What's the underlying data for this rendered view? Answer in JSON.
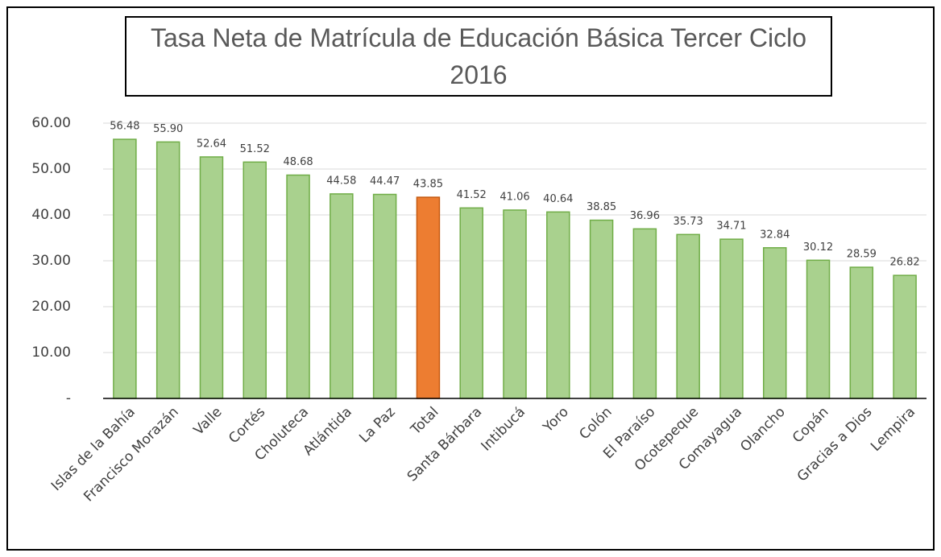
{
  "chart_data": {
    "type": "bar",
    "title": "Tasa Neta de Matrícula de Educación Básica Tercer Ciclo 2016",
    "categories": [
      "Islas de la Bahía",
      "Francisco Morazán",
      "Valle",
      "Cortés",
      "Choluteca",
      "Atlántida",
      "La Paz",
      "Total",
      "Santa Bárbara",
      "Intibucá",
      "Yoro",
      "Colón",
      "El Paraíso",
      "Ocotepeque",
      "Comayagua",
      "Olancho",
      "Copán",
      "Gracias a Dios",
      "Lempira"
    ],
    "values": [
      56.48,
      55.9,
      52.64,
      51.52,
      48.68,
      44.58,
      44.47,
      43.85,
      41.52,
      41.06,
      40.64,
      38.85,
      36.96,
      35.73,
      34.71,
      32.84,
      30.12,
      28.59,
      26.82
    ],
    "value_labels": [
      "56.48",
      "55.90",
      "52.64",
      "51.52",
      "48.68",
      "44.58",
      "44.47",
      "43.85",
      "41.52",
      "41.06",
      "40.64",
      "38.85",
      "36.96",
      "35.73",
      "34.71",
      "32.84",
      "30.12",
      "28.59",
      "26.82"
    ],
    "colors": [
      "#a9d18e",
      "#a9d18e",
      "#a9d18e",
      "#a9d18e",
      "#a9d18e",
      "#a9d18e",
      "#a9d18e",
      "#ed7d31",
      "#a9d18e",
      "#a9d18e",
      "#a9d18e",
      "#a9d18e",
      "#a9d18e",
      "#a9d18e",
      "#a9d18e",
      "#a9d18e",
      "#a9d18e",
      "#a9d18e",
      "#a9d18e"
    ],
    "ylim": [
      0,
      60
    ],
    "yticks": [
      {
        "value": 0,
        "label": "-"
      },
      {
        "value": 10,
        "label": "10.00"
      },
      {
        "value": 20,
        "label": "20.00"
      },
      {
        "value": 30,
        "label": "30.00"
      },
      {
        "value": 40,
        "label": "40.00"
      },
      {
        "value": 50,
        "label": "50.00"
      },
      {
        "value": 60,
        "label": "60.00"
      }
    ],
    "grid": true
  }
}
